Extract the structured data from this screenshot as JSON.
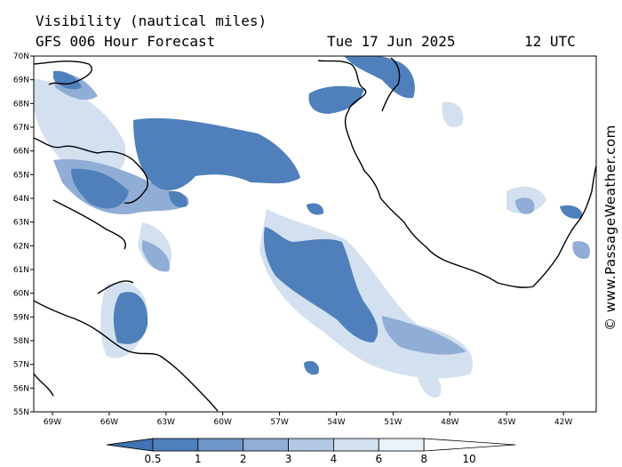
{
  "header": {
    "title": "Visibility (nautical miles)",
    "model": "GFS 006 Hour Forecast",
    "date": "Tue 17 Jun 2025",
    "time": "12 UTC"
  },
  "map": {
    "lat_labels": [
      "70N",
      "69N",
      "68N",
      "67N",
      "66N",
      "65N",
      "64N",
      "63N",
      "62N",
      "61N",
      "60N",
      "59N",
      "58N",
      "57N",
      "56N",
      "55N"
    ],
    "lon_labels": [
      "69W",
      "66W",
      "63W",
      "60W",
      "57W",
      "54W",
      "51W",
      "48W",
      "45W",
      "42W"
    ],
    "land_outline_color": "#000000",
    "background_color": "#ffffff"
  },
  "colorbar": {
    "labels": [
      "0.5",
      "1",
      "2",
      "3",
      "4",
      "6",
      "8",
      "10"
    ],
    "colors": [
      "#3f73b2",
      "#4f80bb",
      "#6f96c8",
      "#90add5",
      "#b3c8e4",
      "#d3e0f0",
      "#eaf1f9",
      "#ffffff"
    ]
  },
  "copyright": "© www.PassageWeather.com"
}
